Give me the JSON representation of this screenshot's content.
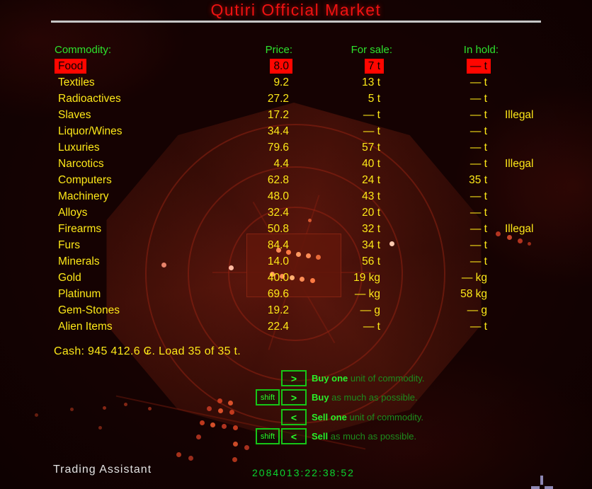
{
  "title": "Qutiri Official Market",
  "table": {
    "headers": {
      "commodity": "Commodity:",
      "price": "Price:",
      "for_sale": "For sale:",
      "in_hold": "In hold:"
    },
    "rows": [
      {
        "name": "Food",
        "price": "8.0",
        "for_sale": "7 t",
        "in_hold": "— t",
        "illegal": "",
        "selected": true
      },
      {
        "name": "Textiles",
        "price": "9.2",
        "for_sale": "13 t",
        "in_hold": "— t",
        "illegal": "",
        "selected": false
      },
      {
        "name": "Radioactives",
        "price": "27.2",
        "for_sale": "5 t",
        "in_hold": "— t",
        "illegal": "",
        "selected": false
      },
      {
        "name": "Slaves",
        "price": "17.2",
        "for_sale": "— t",
        "in_hold": "— t",
        "illegal": "Illegal",
        "selected": false
      },
      {
        "name": "Liquor/Wines",
        "price": "34.4",
        "for_sale": "— t",
        "in_hold": "— t",
        "illegal": "",
        "selected": false
      },
      {
        "name": "Luxuries",
        "price": "79.6",
        "for_sale": "57 t",
        "in_hold": "— t",
        "illegal": "",
        "selected": false
      },
      {
        "name": "Narcotics",
        "price": "4.4",
        "for_sale": "40 t",
        "in_hold": "— t",
        "illegal": "Illegal",
        "selected": false
      },
      {
        "name": "Computers",
        "price": "62.8",
        "for_sale": "24 t",
        "in_hold": "35 t",
        "illegal": "",
        "selected": false
      },
      {
        "name": "Machinery",
        "price": "48.0",
        "for_sale": "43 t",
        "in_hold": "— t",
        "illegal": "",
        "selected": false
      },
      {
        "name": "Alloys",
        "price": "32.4",
        "for_sale": "20 t",
        "in_hold": "— t",
        "illegal": "",
        "selected": false
      },
      {
        "name": "Firearms",
        "price": "50.8",
        "for_sale": "32 t",
        "in_hold": "— t",
        "illegal": "Illegal",
        "selected": false
      },
      {
        "name": "Furs",
        "price": "84.4",
        "for_sale": "34 t",
        "in_hold": "— t",
        "illegal": "",
        "selected": false
      },
      {
        "name": "Minerals",
        "price": "14.0",
        "for_sale": "56 t",
        "in_hold": "— t",
        "illegal": "",
        "selected": false
      },
      {
        "name": "Gold",
        "price": "40.0",
        "for_sale": "19 kg",
        "in_hold": "— kg",
        "illegal": "",
        "selected": false
      },
      {
        "name": "Platinum",
        "price": "69.6",
        "for_sale": "— kg",
        "in_hold": "58 kg",
        "illegal": "",
        "selected": false
      },
      {
        "name": "Gem-Stones",
        "price": "19.2",
        "for_sale": "— g",
        "in_hold": "— g",
        "illegal": "",
        "selected": false
      },
      {
        "name": "Alien Items",
        "price": "22.4",
        "for_sale": "— t",
        "in_hold": "— t",
        "illegal": "",
        "selected": false
      }
    ]
  },
  "status_line": "Cash: 945 412.6 ₢. Load 35 of 35 t.",
  "key_hints": [
    {
      "keys": [
        ">"
      ],
      "strong": "Buy one",
      "rest": " unit of commodity."
    },
    {
      "keys": [
        "shift",
        ">"
      ],
      "strong": "Buy",
      "rest": " as much as possible."
    },
    {
      "keys": [
        "<"
      ],
      "strong": "Sell one",
      "rest": " unit of commodity."
    },
    {
      "keys": [
        "shift",
        "<"
      ],
      "strong": "Sell",
      "rest": " as much as possible."
    }
  ],
  "footer": {
    "hud_label": "Trading Assistant",
    "clock": "2084013:22:38:52"
  },
  "colors": {
    "title_red": "#ee1212",
    "header_green": "#2de32d",
    "value_yellow": "#fde818",
    "selection_red": "#ff0600",
    "hint_bright_green": "#2aee2a",
    "hint_dim_green": "#1d8c1d",
    "clock_green": "#0ad62f",
    "hud_white": "#e2e2e2",
    "divider_gray": "#c6c6c6"
  }
}
